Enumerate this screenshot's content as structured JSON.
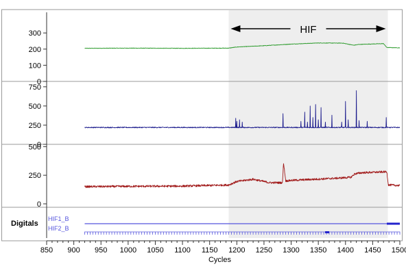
{
  "chart_data": {
    "type": "line",
    "xlabel": "Cycles",
    "xlim": [
      850,
      1500
    ],
    "x_ticks": [
      850,
      900,
      950,
      1000,
      1050,
      1100,
      1150,
      1200,
      1250,
      1300,
      1350,
      1400,
      1450,
      1500
    ],
    "region": {
      "label": "HIF",
      "start": 1185,
      "end": 1478,
      "shade_color": "#eeeeee"
    },
    "panels": [
      {
        "ylim": [
          0,
          360
        ],
        "y_ticks": [
          0,
          100,
          200,
          300
        ],
        "color": "#2a9a2a",
        "baseline": [
          [
            920,
            205
          ],
          [
            1000,
            206
          ],
          [
            1100,
            205
          ],
          [
            1185,
            206
          ],
          [
            1200,
            213
          ],
          [
            1250,
            221
          ],
          [
            1300,
            231
          ],
          [
            1350,
            238
          ],
          [
            1395,
            237
          ],
          [
            1415,
            224
          ],
          [
            1425,
            229
          ],
          [
            1470,
            234
          ],
          [
            1476,
            210
          ],
          [
            1500,
            208
          ]
        ],
        "noise": 1.5
      },
      {
        "ylim": [
          0,
          820
        ],
        "y_ticks": [
          0,
          250,
          500,
          750
        ],
        "color": "#1a1a8c",
        "baseline": [
          [
            920,
            220
          ],
          [
            1500,
            220
          ]
        ],
        "noise": 6,
        "spikes": [
          [
            1198,
            340
          ],
          [
            1200,
            300
          ],
          [
            1205,
            320
          ],
          [
            1210,
            290
          ],
          [
            1285,
            400
          ],
          [
            1318,
            300
          ],
          [
            1325,
            420
          ],
          [
            1330,
            290
          ],
          [
            1335,
            500
          ],
          [
            1340,
            350
          ],
          [
            1345,
            520
          ],
          [
            1350,
            320
          ],
          [
            1355,
            480
          ],
          [
            1363,
            290
          ],
          [
            1375,
            380
          ],
          [
            1393,
            290
          ],
          [
            1400,
            560
          ],
          [
            1405,
            320
          ],
          [
            1420,
            700
          ],
          [
            1425,
            310
          ],
          [
            1440,
            300
          ],
          [
            1475,
            350
          ]
        ]
      },
      {
        "ylim": [
          -30,
          520
        ],
        "y_ticks": [
          0,
          250,
          500
        ],
        "color": "#a01818",
        "baseline": [
          [
            920,
            150
          ],
          [
            1000,
            153
          ],
          [
            1100,
            155
          ],
          [
            1185,
            165
          ],
          [
            1200,
            195
          ],
          [
            1230,
            215
          ],
          [
            1260,
            185
          ],
          [
            1284,
            185
          ],
          [
            1286,
            360
          ],
          [
            1290,
            200
          ],
          [
            1300,
            205
          ],
          [
            1380,
            223
          ],
          [
            1410,
            232
          ],
          [
            1417,
            262
          ],
          [
            1430,
            272
          ],
          [
            1476,
            280
          ],
          [
            1479,
            165
          ],
          [
            1500,
            160
          ]
        ],
        "noise": 9
      }
    ],
    "digitals": {
      "label": "Digitals",
      "channels": [
        {
          "name": "HIF1_B",
          "color": "#5555dd",
          "start": 920,
          "high_from": 1476,
          "end": 1500
        },
        {
          "name": "HIF2_B",
          "color": "#5555dd",
          "start": 920,
          "end": 1500,
          "pulse_period": 5,
          "blip": 1365
        }
      ]
    }
  }
}
